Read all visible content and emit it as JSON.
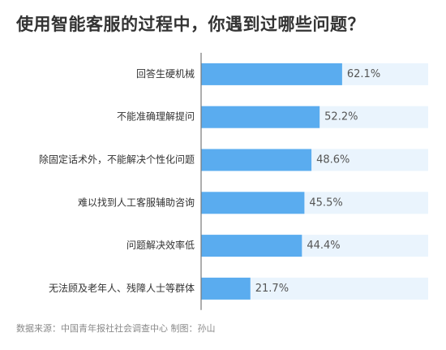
{
  "chart_data": {
    "type": "bar",
    "orientation": "horizontal",
    "title": "使用智能客服的过程中，你遇到过哪些问题？",
    "categories": [
      "回答生硬机械",
      "不能准确理解提问",
      "除固定话术外，不能解决个性化问题",
      "难以找到人工客服辅助咨询",
      "问题解决效率低",
      "无法顾及老年人、残障人士等群体"
    ],
    "values": [
      62.1,
      52.2,
      48.6,
      45.5,
      44.4,
      21.7
    ],
    "value_labels": [
      "62.1%",
      "52.2%",
      "48.6%",
      "45.5%",
      "44.4%",
      "21.7%"
    ],
    "unit": "%",
    "xlim": [
      0,
      100
    ],
    "grid": false,
    "legend": "none",
    "colors": {
      "bar": "#5aacef",
      "track": "#eaf4fd",
      "axis": "#777777",
      "label": "#333333",
      "value_label": "#555555"
    }
  },
  "footer": {
    "source": "数据来源：中国青年报社社会调查中心 制图：孙山"
  }
}
